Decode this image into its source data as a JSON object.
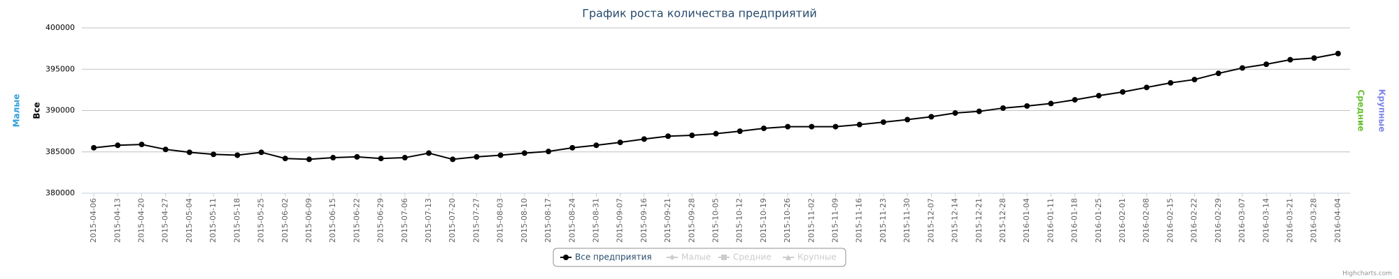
{
  "chart_data": {
    "type": "line",
    "title": "График роста количества предприятий",
    "categories": [
      "2015-04-06",
      "2015-04-13",
      "2015-04-20",
      "2015-04-27",
      "2015-05-04",
      "2015-05-11",
      "2015-05-18",
      "2015-05-25",
      "2015-06-02",
      "2015-06-09",
      "2015-06-15",
      "2015-06-22",
      "2015-06-29",
      "2015-07-06",
      "2015-07-13",
      "2015-07-20",
      "2015-07-27",
      "2015-08-03",
      "2015-08-10",
      "2015-08-17",
      "2015-08-24",
      "2015-08-31",
      "2015-09-07",
      "2015-09-16",
      "2015-09-21",
      "2015-09-28",
      "2015-10-05",
      "2015-10-12",
      "2015-10-19",
      "2015-10-26",
      "2015-11-02",
      "2015-11-09",
      "2015-11-16",
      "2015-11-23",
      "2015-11-30",
      "2015-12-07",
      "2015-12-14",
      "2015-12-21",
      "2015-12-28",
      "2016-01-04",
      "2016-01-11",
      "2016-01-18",
      "2016-01-25",
      "2016-02-01",
      "2016-02-08",
      "2016-02-15",
      "2016-02-22",
      "2016-02-29",
      "2016-03-07",
      "2016-03-14",
      "2016-03-21",
      "2016-03-28",
      "2016-04-04"
    ],
    "series": [
      {
        "name": "Все предприятия",
        "axis_title": "Все",
        "color": "#000000",
        "visible": true,
        "values": [
          385500,
          385800,
          385900,
          385300,
          384950,
          384700,
          384600,
          384950,
          384200,
          384100,
          384300,
          384400,
          384200,
          384300,
          384850,
          384100,
          384400,
          384600,
          384850,
          385050,
          385500,
          385800,
          386150,
          386550,
          386900,
          387000,
          387200,
          387500,
          387850,
          388050,
          388050,
          388050,
          388300,
          388600,
          388900,
          389250,
          389700,
          389900,
          390300,
          390550,
          390850,
          391300,
          391800,
          392250,
          392800,
          393350,
          393750,
          394500,
          395150,
          395600,
          396150,
          396350,
          396900
        ]
      },
      {
        "name": "Малые",
        "color": "#2f9fd8",
        "visible": false
      },
      {
        "name": "Средние",
        "color": "#66c033",
        "visible": false
      },
      {
        "name": "Крупные",
        "color": "#8085e9",
        "visible": false
      }
    ],
    "ylim": [
      380000,
      400000
    ],
    "yticks": [
      380000,
      385000,
      390000,
      395000,
      400000
    ],
    "grid": true,
    "legend": "bottom",
    "credits": "Highcharts.com"
  }
}
